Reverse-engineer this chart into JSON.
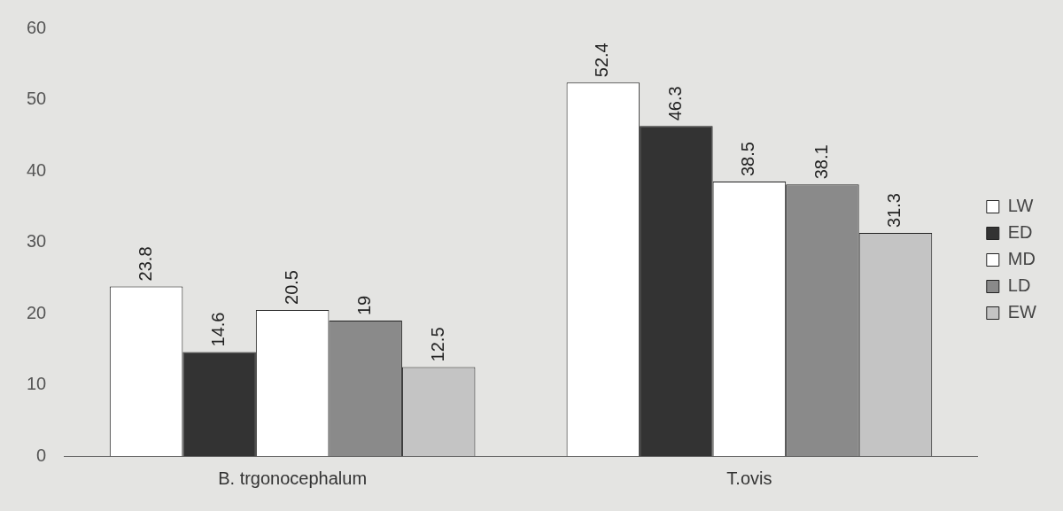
{
  "chart_data": {
    "type": "bar",
    "categories": [
      "B. trgonocephalum",
      "T.ovis"
    ],
    "series": [
      {
        "name": "LW",
        "color": "#ffffff",
        "values": [
          23.8,
          52.4
        ]
      },
      {
        "name": "ED",
        "color": "#333333",
        "values": [
          14.6,
          46.3
        ]
      },
      {
        "name": "MD",
        "color": "#ffffff",
        "values": [
          20.5,
          38.5
        ]
      },
      {
        "name": "LD",
        "color": "#8a8a8a",
        "values": [
          19,
          38.1
        ]
      },
      {
        "name": "EW",
        "color": "#c4c4c4",
        "values": [
          12.5,
          31.3
        ]
      }
    ],
    "ylim": [
      0,
      60
    ],
    "yticks": [
      0,
      10,
      20,
      30,
      40,
      50,
      60
    ],
    "grid": false,
    "legend": "right",
    "data_labels": true
  }
}
